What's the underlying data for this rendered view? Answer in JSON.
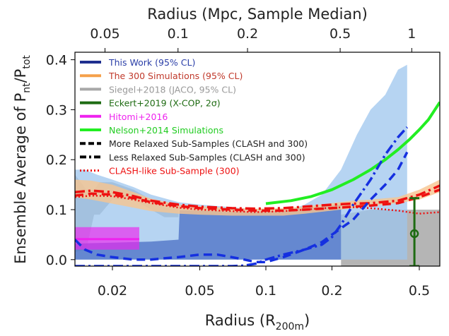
{
  "chart_data": {
    "type": "line",
    "xlabel_bottom": "Radius (R",
    "xlabel_bottom_sub": "200m",
    "xlabel_bottom_end": ")",
    "xlabel_top": "Radius (Mpc, Sample Median)",
    "ylabel_main": "Ensemble Average of P",
    "ylabel_sub1": "nt",
    "ylabel_mid": "/P",
    "ylabel_sub2": "tot",
    "x_scale": "log",
    "xlim": [
      0.0135,
      0.62
    ],
    "ylim": [
      -0.013,
      0.415
    ],
    "x_ticks": [
      {
        "value": 0.02,
        "label": "0.02"
      },
      {
        "value": 0.05,
        "label": "0.05"
      },
      {
        "value": 0.1,
        "label": "0.1"
      },
      {
        "value": 0.2,
        "label": "0.2"
      },
      {
        "value": 0.5,
        "label": "0.5"
      }
    ],
    "y_ticks": [
      {
        "value": 0.0,
        "label": "0.0"
      },
      {
        "value": 0.1,
        "label": "0.1"
      },
      {
        "value": 0.2,
        "label": "0.2"
      },
      {
        "value": 0.3,
        "label": "0.3"
      },
      {
        "value": 0.4,
        "label": "0.4"
      }
    ],
    "top_ticks": [
      {
        "value": 0.0185,
        "label": "0.05"
      },
      {
        "value": 0.0398,
        "label": "0.1"
      },
      {
        "value": 0.0825,
        "label": "0.2"
      },
      {
        "value": 0.218,
        "label": "0.5"
      },
      {
        "value": 0.462,
        "label": "1"
      }
    ],
    "legend": {
      "placement": "top-left",
      "entries": [
        {
          "label": "This Work (95% CL)",
          "color": "#1f2f8f",
          "style": "solid",
          "text_color": "#2b3fa8"
        },
        {
          "label": "The 300 Simulations (95% CL)",
          "color": "#f5a04a",
          "style": "solid",
          "text_color": "#c0392b"
        },
        {
          "label": "Siegel+2018 (JACO, 95% CL)",
          "color": "#a8a8a8",
          "style": "solid",
          "text_color": "#999999"
        },
        {
          "label": "Eckert+2019 (X-COP, 2σ)",
          "color": "#1e6b12",
          "style": "solid",
          "text_color": "#1e6b12"
        },
        {
          "label": "Hitomi+2016",
          "color": "#ee22ee",
          "style": "solid",
          "text_color": "#ee22ee"
        },
        {
          "label": "Nelson+2014 Simulations",
          "color": "#22ee22",
          "style": "solid",
          "text_color": "#22cc22"
        },
        {
          "label": "More Relaxed Sub-Samples (CLASH and 300)",
          "color": "#000000",
          "style": "dashed",
          "text_color": "#222222"
        },
        {
          "label": "Less Relaxed Sub-Samples (CLASH and 300)",
          "color": "#000000",
          "style": "dashdot",
          "text_color": "#222222"
        },
        {
          "label": "CLASH-like Sub-Sample (300)",
          "color": "#ee1111",
          "style": "dotted",
          "text_color": "#ee1111"
        }
      ]
    },
    "bands": [
      {
        "name": "Siegel+2018 (JACO, 95% CL)",
        "color": "#a8a8a8",
        "opacity": 0.85,
        "x": [
          0.0135,
          0.0152,
          0.0165,
          0.0175,
          0.02,
          0.025,
          0.03,
          0.0345,
          0.04
        ],
        "upper": [
          0.17,
          0.14,
          0.14,
          0.155,
          0.155,
          0.14,
          0.12,
          0.105,
          0.1
        ],
        "lower": [
          0.015,
          0.02,
          0.09,
          0.09,
          0.12,
          0.12,
          0.1,
          0.085,
          0.085
        ]
      },
      {
        "name": "Siegel+2018 (JACO, 95% CL)",
        "color": "#a8a8a8",
        "opacity": 0.85,
        "x": [
          0.22,
          0.3,
          0.4,
          0.5,
          0.62
        ],
        "upper": [
          0.09,
          0.1,
          0.1,
          0.1,
          0.1
        ],
        "lower": [
          -0.013,
          -0.013,
          -0.013,
          -0.013,
          -0.013
        ]
      },
      {
        "name": "This Work outer (95% CL)",
        "color": "#9ec6ee",
        "opacity": 0.75,
        "x": [
          0.0135,
          0.015,
          0.017,
          0.02,
          0.025,
          0.03,
          0.04,
          0.05,
          0.07,
          0.09,
          0.11,
          0.13,
          0.15,
          0.18,
          0.22,
          0.26,
          0.3,
          0.35,
          0.4,
          0.44
        ],
        "upper": [
          0.18,
          0.18,
          0.17,
          0.16,
          0.145,
          0.13,
          0.115,
          0.11,
          0.105,
          0.1,
          0.098,
          0.1,
          0.11,
          0.13,
          0.18,
          0.25,
          0.3,
          0.33,
          0.38,
          0.39
        ],
        "lower": [
          0.0,
          0.0,
          0.0,
          0.0,
          0.0,
          0.0,
          0.0,
          0.0,
          0.0,
          0.0,
          0.0,
          0.0,
          0.0,
          0.0,
          0.0,
          0.0,
          0.0,
          0.0,
          0.0,
          0.0
        ]
      },
      {
        "name": "This Work inner (95% CL)",
        "color": "#4a6fc4",
        "opacity": 0.75,
        "x": [
          0.0135,
          0.02,
          0.03,
          0.04,
          0.0405,
          0.05,
          0.07,
          0.1,
          0.13,
          0.16,
          0.2,
          0.22
        ],
        "upper": [
          0.032,
          0.034,
          0.036,
          0.04,
          0.099,
          0.098,
          0.096,
          0.096,
          0.1,
          0.104,
          0.108,
          0.11
        ],
        "lower": [
          0.0,
          0.0,
          0.0,
          0.0,
          0.0,
          0.0,
          0.0,
          0.0,
          0.0,
          0.0,
          0.0,
          0.0
        ]
      },
      {
        "name": "The 300 Simulations (95% CL)",
        "color": "#f7c48e",
        "opacity": 0.8,
        "x": [
          0.0135,
          0.016,
          0.02,
          0.025,
          0.03,
          0.04,
          0.05,
          0.07,
          0.09,
          0.12,
          0.15,
          0.2,
          0.25,
          0.3,
          0.4,
          0.5,
          0.62
        ],
        "upper": [
          0.16,
          0.158,
          0.15,
          0.135,
          0.122,
          0.11,
          0.107,
          0.103,
          0.102,
          0.103,
          0.106,
          0.113,
          0.118,
          0.12,
          0.125,
          0.14,
          0.16
        ],
        "lower": [
          0.125,
          0.12,
          0.112,
          0.104,
          0.097,
          0.092,
          0.09,
          0.088,
          0.088,
          0.088,
          0.092,
          0.098,
          0.103,
          0.107,
          0.113,
          0.12,
          0.135
        ]
      }
    ],
    "rects": [
      {
        "name": "Hitomi+2016",
        "color": "#ee22ee",
        "opacity": 0.65,
        "x0": 0.0135,
        "x1": 0.0265,
        "y0": 0.02,
        "y1": 0.065
      }
    ],
    "lines": [
      {
        "name": "Hitomi+2016",
        "color": "#ee22ee",
        "width": 3,
        "style": "solid",
        "x": [
          0.0135,
          0.0265
        ],
        "y": [
          0.041,
          0.041
        ]
      },
      {
        "name": "Nelson+2014 Simulations",
        "color": "#22ee22",
        "width": 4,
        "style": "solid",
        "x": [
          0.1,
          0.13,
          0.16,
          0.2,
          0.25,
          0.3,
          0.35,
          0.4,
          0.45,
          0.5,
          0.55,
          0.62
        ],
        "y": [
          0.112,
          0.118,
          0.126,
          0.14,
          0.16,
          0.18,
          0.2,
          0.22,
          0.24,
          0.26,
          0.28,
          0.315
        ]
      },
      {
        "name": "The 300 median (more relaxed)",
        "color": "#ee1111",
        "width": 3.5,
        "style": "dashed",
        "x": [
          0.0135,
          0.016,
          0.02,
          0.025,
          0.03,
          0.04,
          0.05,
          0.07,
          0.09,
          0.12,
          0.15,
          0.2,
          0.25,
          0.3,
          0.4,
          0.5,
          0.62
        ],
        "y": [
          0.128,
          0.132,
          0.13,
          0.123,
          0.115,
          0.107,
          0.103,
          0.1,
          0.098,
          0.098,
          0.1,
          0.103,
          0.106,
          0.108,
          0.113,
          0.125,
          0.14
        ]
      },
      {
        "name": "The 300 median (less relaxed)",
        "color": "#ee1111",
        "width": 3.5,
        "style": "dashdot",
        "x": [
          0.0135,
          0.016,
          0.02,
          0.025,
          0.03,
          0.04,
          0.05,
          0.07,
          0.09,
          0.12,
          0.15,
          0.2,
          0.25,
          0.3,
          0.4,
          0.5,
          0.62
        ],
        "y": [
          0.135,
          0.138,
          0.135,
          0.127,
          0.118,
          0.11,
          0.106,
          0.103,
          0.102,
          0.103,
          0.106,
          0.11,
          0.112,
          0.113,
          0.118,
          0.13,
          0.148
        ]
      },
      {
        "name": "CLASH-like Sub-Sample (300)",
        "color": "#ee1111",
        "width": 2.5,
        "style": "dotted",
        "x": [
          0.0135,
          0.016,
          0.02,
          0.025,
          0.03,
          0.04,
          0.05,
          0.07,
          0.09,
          0.12,
          0.15,
          0.2,
          0.25,
          0.3,
          0.4,
          0.5,
          0.62
        ],
        "y": [
          0.125,
          0.128,
          0.127,
          0.12,
          0.113,
          0.104,
          0.1,
          0.097,
          0.095,
          0.097,
          0.1,
          0.104,
          0.105,
          0.103,
          0.098,
          0.092,
          0.095
        ]
      },
      {
        "name": "This Work (more relaxed)",
        "color": "#1530e0",
        "width": 3.5,
        "style": "dashed",
        "x": [
          0.0135,
          0.015,
          0.017,
          0.02,
          0.025,
          0.03,
          0.035,
          0.04,
          0.05,
          0.06,
          0.07,
          0.08,
          0.09,
          0.1,
          0.12,
          0.15,
          0.18,
          0.2,
          0.25,
          0.3,
          0.35,
          0.4,
          0.44
        ],
        "y": [
          0.04,
          0.02,
          0.01,
          0.005,
          0.0,
          0.0,
          0.003,
          0.005,
          0.01,
          0.01,
          0.005,
          0.0,
          -0.005,
          -0.005,
          0.005,
          0.02,
          0.035,
          0.05,
          0.08,
          0.12,
          0.15,
          0.18,
          0.215
        ]
      },
      {
        "name": "This Work (less relaxed)",
        "color": "#1530e0",
        "width": 3.5,
        "style": "dashdot",
        "x": [
          0.0135,
          0.02,
          0.03,
          0.04,
          0.05,
          0.06,
          0.07,
          0.08,
          0.09,
          0.1,
          0.12,
          0.15,
          0.18,
          0.2,
          0.22,
          0.25,
          0.3,
          0.35,
          0.4,
          0.44
        ],
        "y": [
          -0.013,
          -0.013,
          -0.013,
          -0.013,
          -0.013,
          -0.013,
          -0.013,
          -0.012,
          -0.008,
          0.0,
          0.01,
          0.02,
          0.03,
          0.045,
          0.07,
          0.11,
          0.16,
          0.21,
          0.245,
          0.265
        ]
      }
    ],
    "points": [
      {
        "name": "Eckert+2019 (X-COP, 2σ)",
        "color": "#1e6b12",
        "x": 0.475,
        "y": 0.052,
        "yerr_low": 0.065,
        "yerr_high": 0.071,
        "shape": "open-circle"
      }
    ]
  }
}
